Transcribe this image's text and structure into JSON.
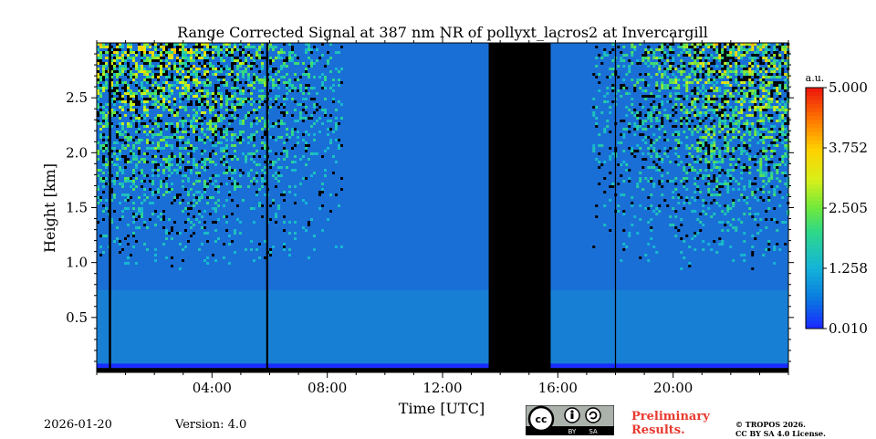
{
  "chart_data": {
    "type": "heatmap",
    "title": "Range Corrected Signal at 387 nm NR of pollyxt_lacros2 at Invercargill",
    "xlabel": "Time [UTC]",
    "ylabel": "Height [km]",
    "xlim_hours": [
      0,
      24
    ],
    "ylim_km": [
      0,
      3.0
    ],
    "x_ticks": [
      {
        "hour": 4,
        "label": "04:00"
      },
      {
        "hour": 8,
        "label": "08:00"
      },
      {
        "hour": 12,
        "label": "12:00"
      },
      {
        "hour": 16,
        "label": "16:00"
      },
      {
        "hour": 20,
        "label": "20:00"
      }
    ],
    "y_ticks": [
      {
        "value": 0.5,
        "label": "0.5"
      },
      {
        "value": 1.0,
        "label": "1.0"
      },
      {
        "value": 1.5,
        "label": "1.5"
      },
      {
        "value": 2.0,
        "label": "2.0"
      },
      {
        "value": 2.5,
        "label": "2.5"
      }
    ],
    "colorbar": {
      "unit": "a.u.",
      "min": 0.01,
      "max": 5.0,
      "ticks": [
        {
          "value": 0.01,
          "label": "0.010"
        },
        {
          "value": 1.258,
          "label": "1.258"
        },
        {
          "value": 2.505,
          "label": "2.505"
        },
        {
          "value": 3.752,
          "label": "3.752"
        },
        {
          "value": 5.0,
          "label": "5.000"
        }
      ]
    },
    "no_data_periods_hours": [
      [
        0.42,
        0.5
      ],
      [
        5.88,
        5.95
      ],
      [
        13.6,
        15.75
      ],
      [
        17.98,
        18.02
      ]
    ],
    "noisy_periods_hours": [
      [
        0,
        8.5
      ],
      [
        17.2,
        24
      ]
    ]
  },
  "footer": {
    "date": "2026-01-20",
    "version": "Version: 4.0",
    "preliminary": "Preliminary Results.",
    "copyright_line1": "© TROPOS 2026.",
    "copyright_line2": "CC BY SA 4.0 License.",
    "license_badge": {
      "text_by": "BY",
      "text_sa": "SA",
      "text_cc": "cc"
    }
  },
  "colors": {
    "background_signal": "#1a6fd6",
    "no_data": "#000000",
    "prelim_text": "#e8392f"
  }
}
